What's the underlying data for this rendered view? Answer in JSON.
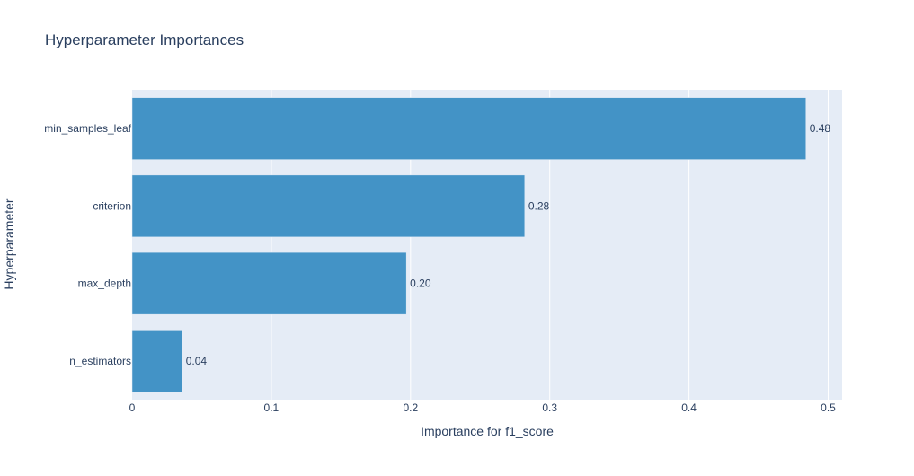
{
  "chart_data": {
    "type": "bar",
    "orientation": "horizontal",
    "title": "Hyperparameter Importances",
    "xlabel": "Importance for f1_score",
    "ylabel": "Hyperparameter",
    "categories": [
      "min_samples_leaf",
      "criterion",
      "max_depth",
      "n_estimators"
    ],
    "values": [
      0.484,
      0.282,
      0.197,
      0.036
    ],
    "value_labels": [
      "0.48",
      "0.28",
      "0.20",
      "0.04"
    ],
    "xlim": [
      0,
      0.51
    ],
    "x_ticks": [
      0,
      0.1,
      0.2,
      0.3,
      0.4,
      0.5
    ],
    "x_tick_labels": [
      "0",
      "0.1",
      "0.2",
      "0.3",
      "0.4",
      "0.5"
    ],
    "grid": true,
    "colors": {
      "bar": "#4393c6",
      "plot_bg": "#e5ecf6",
      "grid": "#ffffff",
      "text": "#2a3f5f"
    }
  }
}
